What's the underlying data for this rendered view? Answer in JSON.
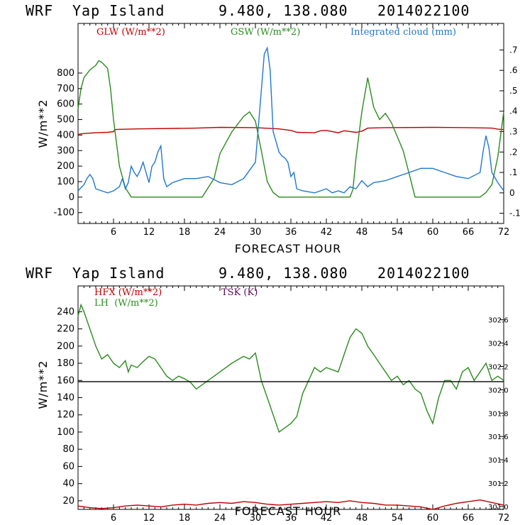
{
  "chart_data": [
    {
      "type": "line",
      "header": {
        "model": "WRF",
        "location": "Yap Island",
        "coords": "9.480, 138.080",
        "date": "2014022100"
      },
      "xlabel": "FORECAST HOUR",
      "ylabel": "W/m**2",
      "xlim": [
        0,
        72
      ],
      "ylim": [
        -170,
        1120
      ],
      "xticks": [
        "6",
        "12",
        "18",
        "24",
        "30",
        "36",
        "42",
        "48",
        "54",
        "60",
        "66",
        "72"
      ],
      "yticks": [
        "-100",
        "0",
        "100",
        "200",
        "300",
        "400",
        "500",
        "600",
        "700",
        "800"
      ],
      "y2lim": [
        -0.15,
        0.83
      ],
      "y2ticks": [
        "-.1",
        "0",
        ".1",
        ".2",
        ".3",
        ".4",
        ".5",
        ".6",
        ".7"
      ],
      "legend": [
        "GLW (W/m**2)",
        "GSW (W/m**2)",
        "Integrated cloud (mm)"
      ],
      "colors": {
        "GLW": "#c00000",
        "GSW": "#2a8a1e",
        "CLOUD": "#1f77d0"
      },
      "series": [
        {
          "name": "GLW (W/m**2)",
          "axis": "left",
          "x": [
            0,
            1,
            3,
            5,
            6,
            6.2,
            7,
            10,
            20,
            24,
            30,
            34,
            36,
            37,
            40,
            41,
            42,
            44,
            45,
            47,
            48,
            49,
            52,
            60,
            66,
            70,
            71,
            72
          ],
          "y": [
            405,
            410,
            415,
            418,
            422,
            435,
            437,
            440,
            445,
            450,
            448,
            440,
            430,
            418,
            415,
            428,
            430,
            415,
            428,
            418,
            425,
            445,
            448,
            450,
            448,
            445,
            438,
            435
          ]
        },
        {
          "name": "GSW (W/m**2)",
          "axis": "left",
          "x": [
            0,
            0.5,
            1,
            2,
            3,
            3.5,
            4,
            5,
            5.5,
            6,
            7,
            8,
            9,
            20,
            21,
            23,
            24,
            25,
            26,
            28,
            29,
            30,
            31,
            32,
            33,
            34,
            45,
            46,
            46.5,
            47,
            48,
            49,
            50,
            51,
            52,
            53,
            55,
            56,
            57,
            68,
            69,
            70,
            71,
            72
          ],
          "y": [
            570,
            700,
            770,
            820,
            850,
            880,
            870,
            830,
            700,
            500,
            200,
            60,
            0,
            0,
            0,
            120,
            280,
            350,
            420,
            520,
            550,
            490,
            300,
            100,
            30,
            0,
            0,
            0,
            50,
            250,
            550,
            770,
            580,
            500,
            540,
            480,
            300,
            150,
            0,
            0,
            30,
            80,
            260,
            550
          ]
        },
        {
          "name": "Integrated cloud (mm)",
          "axis": "right",
          "x": [
            0,
            1,
            1.5,
            2,
            2.5,
            3,
            4,
            5,
            6,
            7,
            7.5,
            8,
            8.5,
            9,
            9.5,
            10,
            10.5,
            11,
            11.5,
            12,
            12.5,
            13,
            13.5,
            14,
            14.5,
            15,
            16,
            18,
            20,
            22,
            24,
            26,
            28,
            30,
            31,
            31.5,
            32,
            32.5,
            33,
            34,
            34.5,
            35,
            35.5,
            36,
            36.5,
            37,
            38,
            40,
            41,
            42,
            43,
            44,
            45,
            46,
            47,
            48,
            49,
            50,
            52,
            54,
            56,
            58,
            60,
            62,
            64,
            66,
            68,
            68.5,
            69,
            69.5,
            70,
            71,
            72
          ],
          "y": [
            0.01,
            0.04,
            0.07,
            0.09,
            0.07,
            0.02,
            0.01,
            0.0,
            0.01,
            0.03,
            0.07,
            0.02,
            0.05,
            0.13,
            0.1,
            0.08,
            0.11,
            0.15,
            0.1,
            0.05,
            0.13,
            0.15,
            0.2,
            0.23,
            0.07,
            0.03,
            0.05,
            0.07,
            0.07,
            0.08,
            0.05,
            0.04,
            0.07,
            0.15,
            0.5,
            0.68,
            0.71,
            0.6,
            0.3,
            0.2,
            0.18,
            0.17,
            0.15,
            0.08,
            0.1,
            0.02,
            0.01,
            0.0,
            0.01,
            0.02,
            0.0,
            0.01,
            0.0,
            0.03,
            0.02,
            0.06,
            0.03,
            0.05,
            0.06,
            0.08,
            0.1,
            0.12,
            0.12,
            0.1,
            0.08,
            0.07,
            0.1,
            0.2,
            0.28,
            0.22,
            0.1,
            0.05,
            0.01
          ]
        }
      ]
    },
    {
      "type": "line",
      "header": {
        "model": "WRF",
        "location": "Yap Island",
        "coords": "9.480, 138.080",
        "date": "2014022100"
      },
      "xlabel": "FORECAST HOUR",
      "ylabel": "W/m**2",
      "xlim": [
        0,
        72
      ],
      "ylim": [
        10,
        270
      ],
      "xticks": [
        "6",
        "12",
        "18",
        "24",
        "30",
        "36",
        "42",
        "48",
        "54",
        "60",
        "66",
        "72"
      ],
      "yticks": [
        "20",
        "40",
        "60",
        "80",
        "100",
        "120",
        "140",
        "160",
        "180",
        "200",
        "220",
        "240"
      ],
      "y2lim": [
        300.975,
        302.89
      ],
      "y2ticks": [
        "301.0",
        "301.2",
        "301.4",
        "301.6",
        "301.8",
        "302.0",
        "302.2",
        "302.4",
        "302.6"
      ],
      "legend": [
        "HFX (W/m**2)",
        "LH  (W/m**2)",
        "TSK (K)"
      ],
      "colors": {
        "HFX": "#c00000",
        "LH": "#2a8a1e",
        "TSK": "#000000"
      },
      "series": [
        {
          "name": "HFX (W/m**2)",
          "axis": "left",
          "x": [
            0,
            2,
            4,
            6,
            8,
            10,
            12,
            14,
            16,
            18,
            20,
            22,
            24,
            26,
            28,
            30,
            32,
            34,
            36,
            38,
            40,
            42,
            44,
            46,
            48,
            50,
            52,
            54,
            56,
            58,
            60,
            62,
            64,
            66,
            68,
            70,
            72
          ],
          "y": [
            14,
            12,
            11,
            12,
            14,
            15,
            14,
            13,
            15,
            16,
            15,
            17,
            18,
            17,
            19,
            18,
            16,
            15,
            16,
            17,
            18,
            19,
            18,
            20,
            18,
            17,
            15,
            15,
            14,
            13,
            10,
            14,
            17,
            19,
            21,
            18,
            15
          ]
        },
        {
          "name": "LH  (W/m**2)",
          "axis": "left",
          "x": [
            0,
            0.5,
            1,
            2,
            3,
            4,
            5,
            6,
            7,
            8,
            8.5,
            9,
            10,
            11,
            12,
            13,
            14,
            15,
            16,
            17,
            18,
            19,
            20,
            21,
            22,
            24,
            26,
            28,
            29,
            30,
            31,
            31.5,
            32,
            33,
            34,
            35,
            36,
            37,
            38,
            39,
            40,
            41,
            42,
            44,
            45,
            46,
            47,
            48,
            49,
            50,
            52,
            53,
            54,
            55,
            56,
            57,
            58,
            59,
            60,
            61,
            62,
            63,
            64,
            65,
            66,
            67,
            68,
            69,
            70,
            71,
            72
          ],
          "y": [
            235,
            248,
            240,
            220,
            200,
            185,
            190,
            180,
            175,
            183,
            170,
            178,
            175,
            182,
            188,
            185,
            175,
            165,
            160,
            165,
            162,
            158,
            150,
            155,
            160,
            170,
            180,
            188,
            185,
            192,
            160,
            150,
            140,
            120,
            100,
            105,
            110,
            118,
            145,
            160,
            175,
            170,
            175,
            170,
            190,
            210,
            220,
            215,
            200,
            190,
            170,
            160,
            165,
            155,
            160,
            150,
            145,
            125,
            110,
            140,
            160,
            160,
            150,
            170,
            175,
            160,
            170,
            180,
            160,
            165,
            160
          ]
        },
        {
          "name": "TSK (K)",
          "axis": "right",
          "x": [
            0,
            72
          ],
          "y": [
            302.07,
            302.07
          ]
        }
      ]
    }
  ]
}
